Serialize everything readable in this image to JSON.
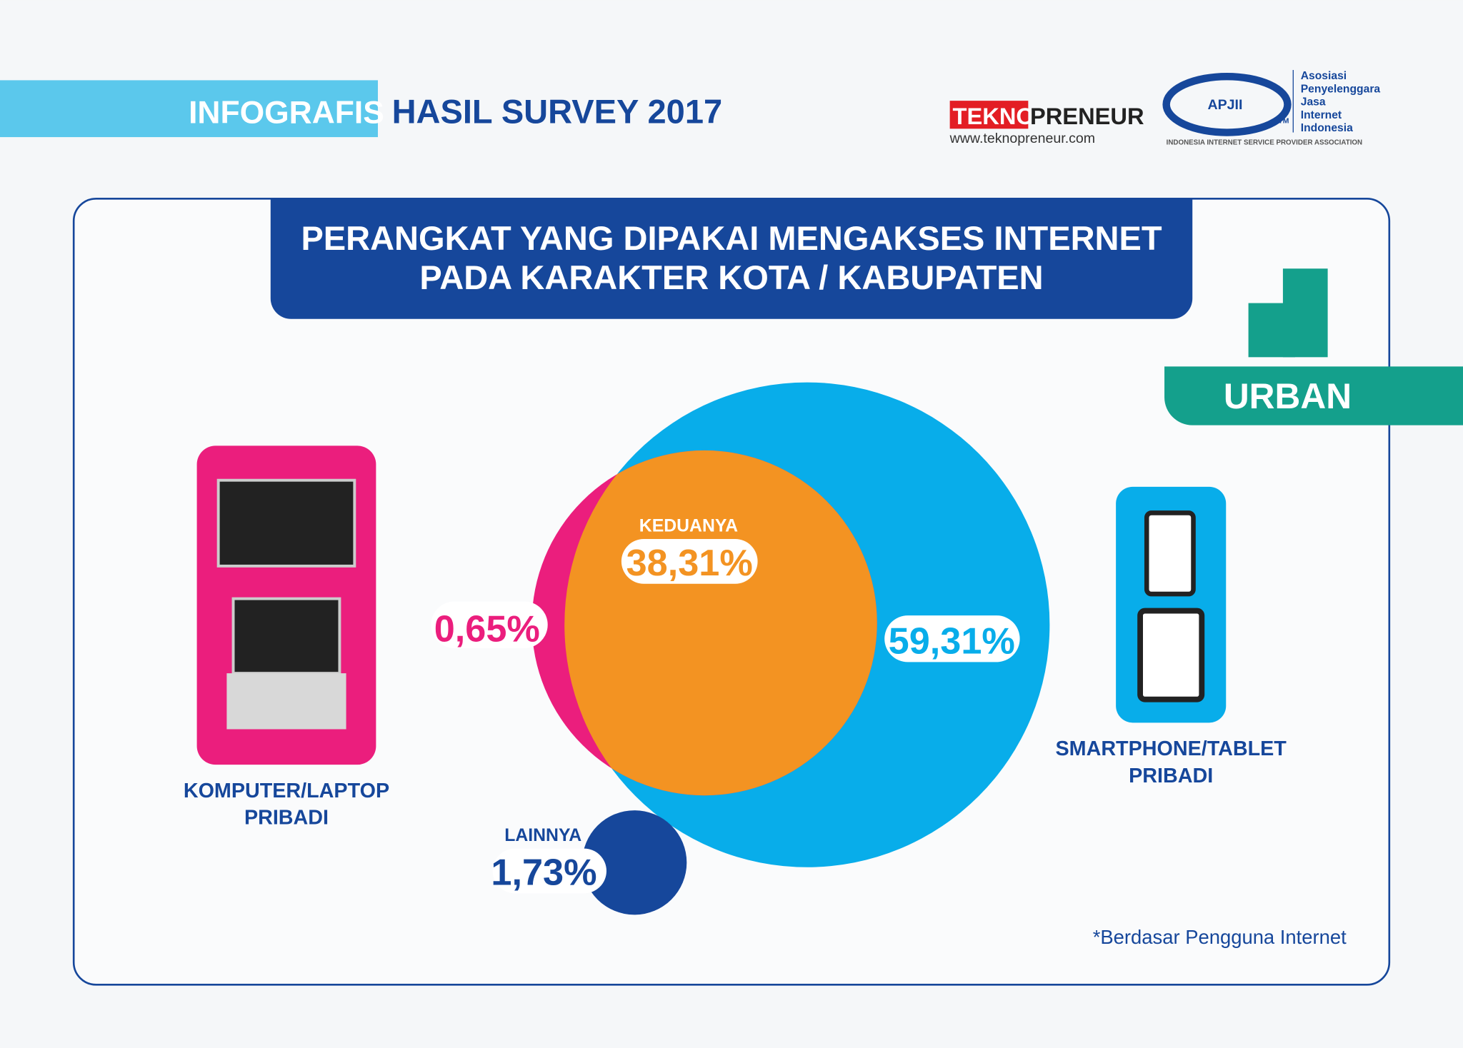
{
  "header": {
    "tag": "INFOGRAFIS",
    "title": "HASIL SURVEY 2017",
    "teknopreneur": {
      "part1": "TEKNO",
      "part2": "PRENEUR",
      "url": "www.teknopreneur.com"
    },
    "apjii": {
      "logo": "APJII",
      "tm": "TM",
      "name": [
        "Asosiasi",
        "Penyelenggara",
        "Jasa",
        "Internet",
        "Indonesia"
      ],
      "tagline": "INDONESIA INTERNET SERVICE PROVIDER ASSOCIATION"
    }
  },
  "panel": {
    "title": [
      "PERANGKAT YANG DIPAKAI MENGAKSES INTERNET",
      "PADA KARAKTER KOTA / KABUPATEN"
    ],
    "badge": "URBAN",
    "computer": {
      "label": [
        "KOMPUTER/LAPTOP",
        "PRIBADI"
      ],
      "value": "0,65%"
    },
    "smartphone": {
      "label": [
        "SMARTPHONE/TABLET",
        "PRIBADI"
      ],
      "value": "59,31%"
    },
    "both": {
      "label": "KEDUANYA",
      "value": "38,31%"
    },
    "others": {
      "label": "LAINNYA",
      "value": "1,73%"
    },
    "footnote": "*Berdasar Pengguna Internet"
  }
}
